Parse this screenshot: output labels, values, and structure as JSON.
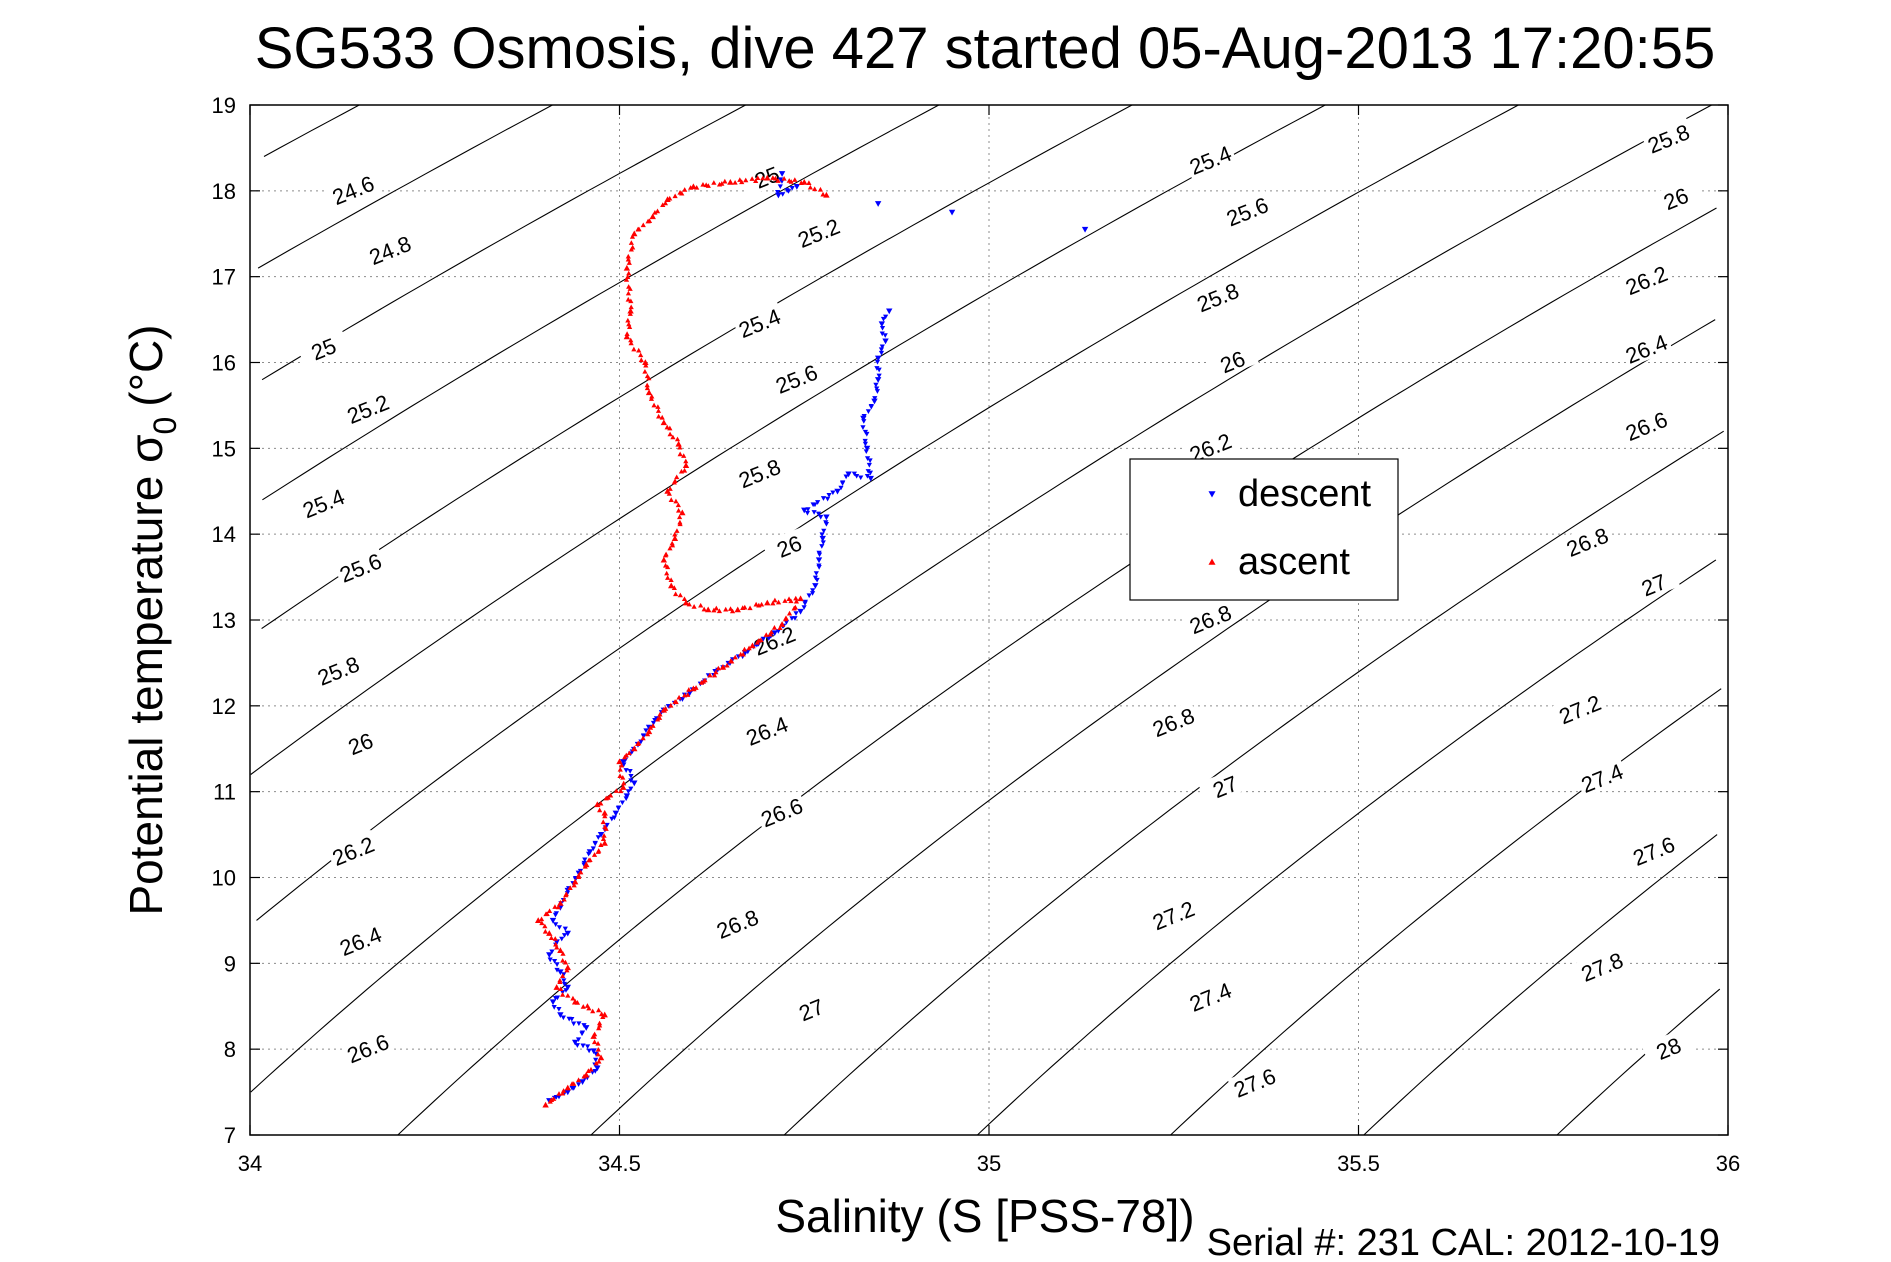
{
  "chart_data": {
    "type": "scatter",
    "title": "SG533 Osmosis, dive 427 started 05-Aug-2013 17:20:55",
    "xlabel": "Salinity (S [PSS-78])",
    "ylabel_main": "Potential temperature σ",
    "ylabel_sub": "0",
    "ylabel_unit": "(°C)",
    "xlim": [
      34,
      36
    ],
    "ylim": [
      7,
      19
    ],
    "xticks": [
      "34",
      "34.5",
      "35",
      "35.5",
      "36"
    ],
    "yticks": [
      "7",
      "8",
      "9",
      "10",
      "11",
      "12",
      "13",
      "14",
      "15",
      "16",
      "17",
      "18",
      "19"
    ],
    "grid": true,
    "legend": {
      "placement": "center-right",
      "entries": [
        {
          "label": "descent",
          "color": "#0000ff",
          "marker": "triangle-down"
        },
        {
          "label": "ascent",
          "color": "#ff0000",
          "marker": "triangle-up"
        }
      ]
    },
    "density_contours": {
      "levels": [
        24.6,
        24.8,
        25,
        25.2,
        25.4,
        25.6,
        25.8,
        26,
        26.2,
        26.4,
        26.6,
        26.8,
        27,
        27.2,
        27.4,
        27.6,
        27.8,
        28
      ],
      "color": "#000000",
      "labels": [
        {
          "text": "24.6",
          "x": 34.14,
          "y": 18.0
        },
        {
          "text": "24.8",
          "x": 34.19,
          "y": 17.3
        },
        {
          "text": "25",
          "x": 34.1,
          "y": 16.15
        },
        {
          "text": "25.2",
          "x": 34.16,
          "y": 15.45
        },
        {
          "text": "25.4",
          "x": 34.1,
          "y": 14.35
        },
        {
          "text": "25.6",
          "x": 34.15,
          "y": 13.6
        },
        {
          "text": "25.8",
          "x": 34.12,
          "y": 12.4
        },
        {
          "text": "26",
          "x": 34.15,
          "y": 11.55
        },
        {
          "text": "26.2",
          "x": 34.14,
          "y": 10.3
        },
        {
          "text": "26.4",
          "x": 34.15,
          "y": 9.25
        },
        {
          "text": "26.6",
          "x": 34.16,
          "y": 8.0
        },
        {
          "text": "25",
          "x": 34.7,
          "y": 18.15
        },
        {
          "text": "25.2",
          "x": 34.77,
          "y": 17.5
        },
        {
          "text": "25.4",
          "x": 34.69,
          "y": 16.45
        },
        {
          "text": "25.6",
          "x": 34.74,
          "y": 15.8
        },
        {
          "text": "25.8",
          "x": 34.69,
          "y": 14.7
        },
        {
          "text": "26",
          "x": 34.73,
          "y": 13.85
        },
        {
          "text": "26.2",
          "x": 34.71,
          "y": 12.75
        },
        {
          "text": "26.4",
          "x": 34.7,
          "y": 11.7
        },
        {
          "text": "26.6",
          "x": 34.72,
          "y": 10.75
        },
        {
          "text": "26.8",
          "x": 34.66,
          "y": 9.45
        },
        {
          "text": "27",
          "x": 34.76,
          "y": 8.45
        },
        {
          "text": "25.4",
          "x": 35.3,
          "y": 18.35
        },
        {
          "text": "25.6",
          "x": 35.35,
          "y": 17.75
        },
        {
          "text": "25.8",
          "x": 35.31,
          "y": 16.75
        },
        {
          "text": "26",
          "x": 35.33,
          "y": 16.0
        },
        {
          "text": "26.2",
          "x": 35.3,
          "y": 15.0
        },
        {
          "text": "26.8",
          "x": 35.3,
          "y": 13.0
        },
        {
          "text": "26.8",
          "x": 35.25,
          "y": 11.8
        },
        {
          "text": "27",
          "x": 35.32,
          "y": 11.05
        },
        {
          "text": "27.2",
          "x": 35.25,
          "y": 9.55
        },
        {
          "text": "27.4",
          "x": 35.3,
          "y": 8.6
        },
        {
          "text": "27.6",
          "x": 35.36,
          "y": 7.6
        },
        {
          "text": "25.8",
          "x": 35.92,
          "y": 18.6
        },
        {
          "text": "26",
          "x": 35.93,
          "y": 17.9
        },
        {
          "text": "26.2",
          "x": 35.89,
          "y": 16.95
        },
        {
          "text": "26.4",
          "x": 35.89,
          "y": 16.15
        },
        {
          "text": "26.6",
          "x": 35.89,
          "y": 15.25
        },
        {
          "text": "26.8",
          "x": 35.81,
          "y": 13.9
        },
        {
          "text": "27",
          "x": 35.9,
          "y": 13.4
        },
        {
          "text": "27.2",
          "x": 35.8,
          "y": 11.95
        },
        {
          "text": "27.4",
          "x": 35.83,
          "y": 11.15
        },
        {
          "text": "27.6",
          "x": 35.9,
          "y": 10.3
        },
        {
          "text": "27.8",
          "x": 35.83,
          "y": 8.95
        },
        {
          "text": "28",
          "x": 35.92,
          "y": 8.0
        }
      ]
    },
    "series": [
      {
        "name": "descent",
        "color": "#0000ff",
        "marker": "triangle-down",
        "points": [
          [
            34.405,
            7.4
          ],
          [
            34.43,
            7.5
          ],
          [
            34.45,
            7.62
          ],
          [
            34.47,
            7.78
          ],
          [
            34.465,
            7.98
          ],
          [
            34.44,
            8.08
          ],
          [
            34.455,
            8.25
          ],
          [
            34.42,
            8.4
          ],
          [
            34.41,
            8.55
          ],
          [
            34.43,
            8.72
          ],
          [
            34.42,
            8.9
          ],
          [
            34.405,
            9.1
          ],
          [
            34.415,
            9.25
          ],
          [
            34.43,
            9.35
          ],
          [
            34.41,
            9.5
          ],
          [
            34.42,
            9.65
          ],
          [
            34.43,
            9.85
          ],
          [
            34.445,
            10.05
          ],
          [
            34.46,
            10.3
          ],
          [
            34.475,
            10.5
          ],
          [
            34.495,
            10.75
          ],
          [
            34.51,
            10.95
          ],
          [
            34.52,
            11.1
          ],
          [
            34.505,
            11.35
          ],
          [
            34.525,
            11.55
          ],
          [
            34.54,
            11.75
          ],
          [
            34.56,
            11.95
          ],
          [
            34.595,
            12.15
          ],
          [
            34.63,
            12.4
          ],
          [
            34.67,
            12.62
          ],
          [
            34.71,
            12.85
          ],
          [
            34.745,
            13.1
          ],
          [
            34.765,
            13.4
          ],
          [
            34.77,
            13.7
          ],
          [
            34.775,
            13.95
          ],
          [
            34.78,
            14.2
          ],
          [
            34.75,
            14.28
          ],
          [
            34.795,
            14.5
          ],
          [
            34.81,
            14.7
          ],
          [
            34.84,
            14.65
          ],
          [
            34.835,
            15.0
          ],
          [
            34.83,
            15.35
          ],
          [
            34.845,
            15.55
          ],
          [
            34.85,
            15.8
          ],
          [
            34.85,
            16.05
          ],
          [
            34.86,
            16.25
          ],
          [
            34.855,
            16.45
          ],
          [
            34.865,
            16.6
          ],
          [
            34.72,
            18.2
          ],
          [
            34.715,
            17.95
          ],
          [
            34.74,
            18.05
          ],
          [
            34.85,
            17.85
          ],
          [
            34.95,
            17.75
          ],
          [
            35.13,
            17.55
          ]
        ]
      },
      {
        "name": "ascent",
        "color": "#ff0000",
        "marker": "triangle-up",
        "points": [
          [
            34.4,
            7.35
          ],
          [
            34.43,
            7.55
          ],
          [
            34.455,
            7.7
          ],
          [
            34.475,
            7.9
          ],
          [
            34.465,
            8.15
          ],
          [
            34.48,
            8.4
          ],
          [
            34.44,
            8.55
          ],
          [
            34.415,
            8.72
          ],
          [
            34.43,
            8.95
          ],
          [
            34.42,
            9.15
          ],
          [
            34.405,
            9.35
          ],
          [
            34.39,
            9.5
          ],
          [
            34.42,
            9.7
          ],
          [
            34.44,
            9.95
          ],
          [
            34.455,
            10.15
          ],
          [
            34.48,
            10.4
          ],
          [
            34.48,
            10.75
          ],
          [
            34.47,
            10.85
          ],
          [
            34.505,
            11.05
          ],
          [
            34.5,
            11.35
          ],
          [
            34.52,
            11.5
          ],
          [
            34.54,
            11.7
          ],
          [
            34.56,
            11.95
          ],
          [
            34.6,
            12.2
          ],
          [
            34.64,
            12.45
          ],
          [
            34.68,
            12.7
          ],
          [
            34.72,
            12.95
          ],
          [
            34.745,
            13.25
          ],
          [
            34.7,
            13.2
          ],
          [
            34.66,
            13.12
          ],
          [
            34.62,
            13.12
          ],
          [
            34.59,
            13.2
          ],
          [
            34.57,
            13.4
          ],
          [
            34.56,
            13.7
          ],
          [
            34.575,
            13.95
          ],
          [
            34.585,
            14.25
          ],
          [
            34.565,
            14.5
          ],
          [
            34.59,
            14.8
          ],
          [
            34.58,
            15.05
          ],
          [
            34.56,
            15.3
          ],
          [
            34.54,
            15.65
          ],
          [
            34.535,
            16.0
          ],
          [
            34.51,
            16.3
          ],
          [
            34.515,
            16.6
          ],
          [
            34.51,
            17.1
          ],
          [
            34.52,
            17.5
          ],
          [
            34.545,
            17.7
          ],
          [
            34.565,
            17.9
          ],
          [
            34.6,
            18.05
          ],
          [
            34.65,
            18.1
          ],
          [
            34.7,
            18.15
          ],
          [
            34.75,
            18.1
          ],
          [
            34.78,
            17.95
          ]
        ]
      }
    ]
  },
  "footer": {
    "serial_text": "Serial #: 231  CAL: 2012-10-19"
  }
}
